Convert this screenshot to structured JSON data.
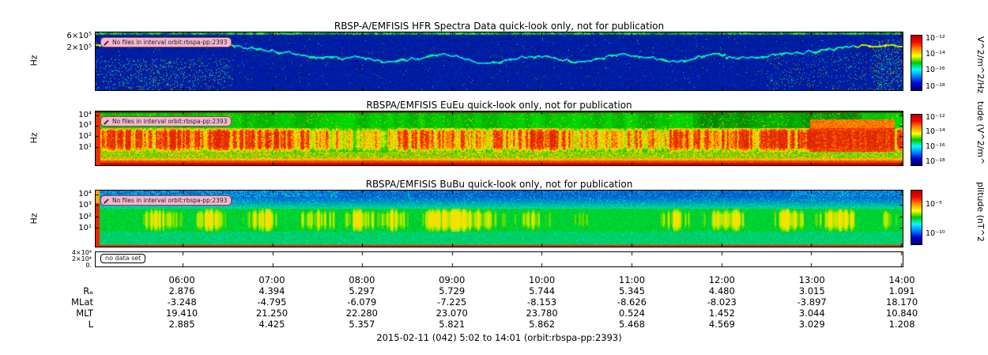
{
  "chart_data": {
    "type": "heatmap",
    "title": "RBSP-A/EMFISIS quick-look spectrogram stack",
    "time_axis": {
      "start_hours": 5.033,
      "end_hours": 14.017,
      "ticks": [
        "06:00",
        "07:00",
        "08:00",
        "09:00",
        "10:00",
        "11:00",
        "12:00",
        "13:00",
        "14:00"
      ]
    },
    "panels": [
      {
        "title": "RBSP-A/EMFISIS  HFR Spectra Data quick-look only, not for publication",
        "badge": "No files in interval orbit:rbspa-pp:2393",
        "ylabel": "Hz",
        "yticks": [
          "6×10⁵",
          "2×10⁵"
        ],
        "colorbar_ticks": [
          "10⁻¹²",
          "10⁻¹⁴",
          "10⁻¹⁶",
          "10⁻¹⁸"
        ],
        "colorbar_label": "V^2/m^2/Hz",
        "description": "dark blue background with cyan-green upper-hybrid band dipping mid-interval, speckle near perigee edges"
      },
      {
        "title": "RBSPA/EMFISIS  EuEu quick-look only, not for publication",
        "badge": "No files in interval orbit:rbspa-pp:2393",
        "ylabel": "Hz",
        "yticks": [
          "10⁴",
          "10³",
          "10²",
          "10¹"
        ],
        "colorbar_ticks": [
          "10⁻¹²",
          "10⁻¹⁴",
          "10⁻¹⁶",
          "10⁻¹⁸"
        ],
        "colorbar_label": "tude (V^2/m^",
        "description": "green background with intense vertically-striped red emissions between 10^2 and 10^3 Hz, solid red band at bottom"
      },
      {
        "title": "RBSPA/EMFISIS  BuBu quick-look only, not for publication",
        "badge": "No files in interval orbit:rbspa-pp:2393",
        "ylabel": "Hz",
        "yticks": [
          "10⁴",
          "10³",
          "10²",
          "10¹"
        ],
        "colorbar_ticks": [
          "10⁻⁵",
          "10⁻¹⁰"
        ],
        "colorbar_label": "plitude (nT^2",
        "description": "blue-cyan upper band fading to green with yellow blobs mid-band, thin red line along bottom, red-orange column at left edge"
      },
      {
        "badge": "no data set",
        "yticks": [
          "4×10⁴",
          "2×10⁴",
          "0."
        ]
      }
    ],
    "colorbar_stops": [
      "#b00000",
      "#ff0000",
      "#ff9000",
      "#ffff00",
      "#00c800",
      "#00ffff",
      "#0080ff",
      "#0000d0",
      "#000070"
    ],
    "ephemeris": {
      "row_labels": [
        "Rₑ",
        "MLat",
        "MLT",
        "L"
      ],
      "rows": [
        [
          "2.876",
          "4.394",
          "5.297",
          "5.729",
          "5.744",
          "5.345",
          "4.480",
          "3.015",
          "1.091"
        ],
        [
          "-3.248",
          "-4.795",
          "-6.079",
          "-7.225",
          "-8.153",
          "-8.626",
          "-8.023",
          "-3.897",
          "18.170"
        ],
        [
          "19.410",
          "21.250",
          "22.280",
          "23.070",
          "23.780",
          "0.524",
          "1.452",
          "3.044",
          "10.840"
        ],
        [
          "2.885",
          "4.425",
          "5.357",
          "5.821",
          "5.862",
          "5.468",
          "4.569",
          "3.029",
          "1.208"
        ]
      ]
    },
    "caption": "2015-02-11 (042) 5:02 to 14:01 (orbit:rbspa-pp:2393)"
  }
}
